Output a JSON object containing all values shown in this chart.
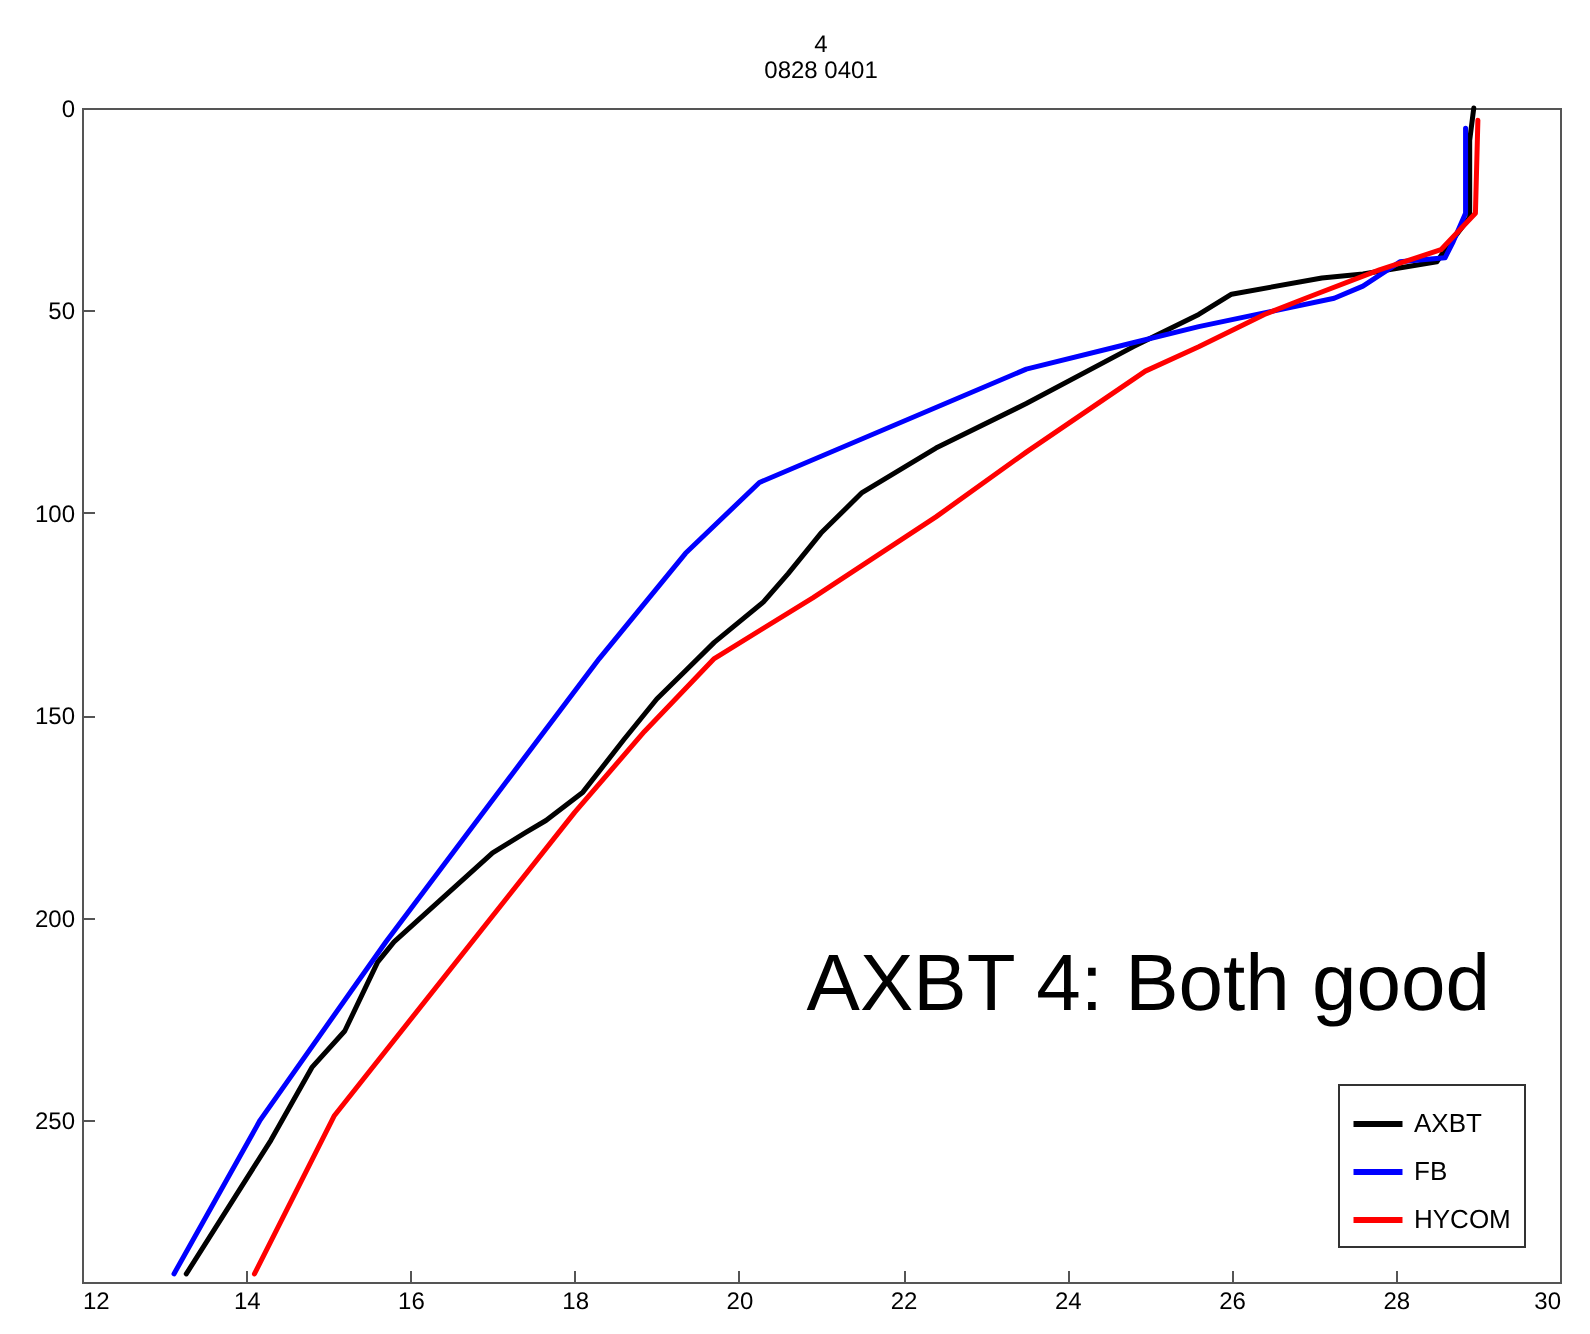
{
  "chart_data": {
    "type": "line",
    "title": "4",
    "subtitle": "0828 0401",
    "xlim": [
      12,
      30
    ],
    "xticks": [
      12,
      14,
      16,
      18,
      20,
      22,
      24,
      26,
      28,
      30
    ],
    "ylim": [
      290,
      0
    ],
    "yticks": [
      0,
      50,
      100,
      150,
      200,
      250
    ],
    "grid": false,
    "legend": "bottom right",
    "marker": "none",
    "line_style": "solid",
    "annotations": [
      "AXBT 4: Both good"
    ],
    "series": [
      {
        "name": "AXBT",
        "color": "#000000",
        "x": [
          28.95,
          28.9,
          28.9,
          28.6,
          28.5,
          27.6,
          27.1,
          26.0,
          25.6,
          24.8,
          23.5,
          22.4,
          21.5,
          21.0,
          20.6,
          20.3,
          19.7,
          19.35,
          19.0,
          18.6,
          18.1,
          17.65,
          17.4,
          17.0,
          16.4,
          15.8,
          15.6,
          15.2,
          14.8,
          14.3,
          13.27
        ],
        "values": [
          0,
          8,
          27,
          35,
          38,
          41,
          42,
          46,
          51,
          59,
          73,
          84,
          95,
          105,
          115,
          122,
          132,
          139,
          146,
          156,
          169,
          176,
          179,
          184,
          195,
          206,
          211,
          228,
          237,
          255,
          288
        ]
      },
      {
        "name": "FB",
        "color": "#0000ff",
        "x": [
          28.85,
          28.85,
          28.7,
          28.6,
          28.05,
          27.6,
          27.25,
          25.6,
          24.8,
          23.5,
          20.25,
          19.35,
          18.3,
          16.7,
          15.7,
          14.17,
          13.12
        ],
        "values": [
          5,
          26,
          33,
          37,
          38,
          44,
          47,
          54,
          58,
          64.5,
          92.5,
          110,
          136,
          179,
          206,
          250,
          288
        ]
      },
      {
        "name": "HYCOM",
        "color": "#ff0000",
        "x": [
          29.0,
          28.97,
          28.55,
          27.8,
          26.9,
          26.4,
          25.6,
          24.95,
          23.5,
          22.4,
          20.9,
          19.7,
          18.85,
          18.0,
          15.07,
          14.1
        ],
        "values": [
          3,
          26,
          35,
          40,
          47,
          51,
          59,
          65,
          85,
          101,
          121,
          136,
          154,
          174,
          249,
          288
        ]
      }
    ]
  }
}
